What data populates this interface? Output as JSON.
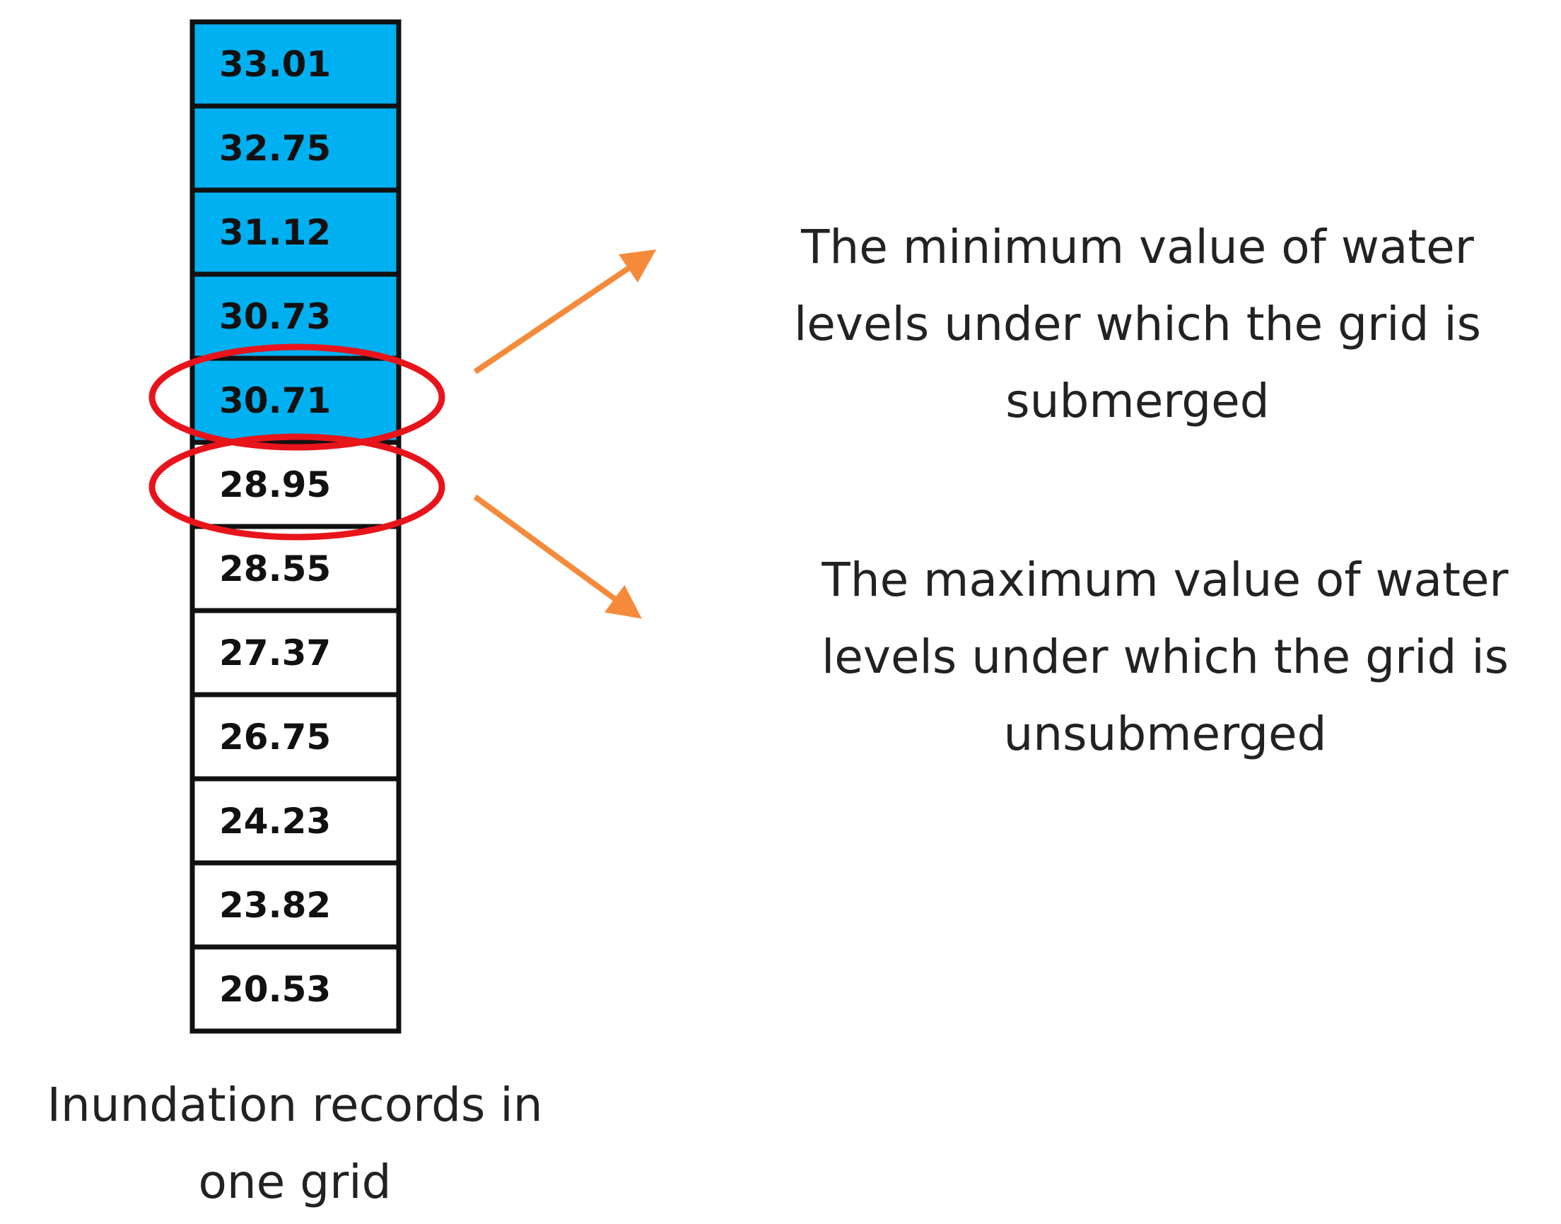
{
  "cells": [
    {
      "label": "33.01",
      "color": "#00b0f0"
    },
    {
      "label": "32.75",
      "color": "#00b0f0"
    },
    {
      "label": "31.12",
      "color": "#00b0f0"
    },
    {
      "label": "30.73",
      "color": "#00b0f0"
    },
    {
      "label": "30.71",
      "color": "#00b0f0"
    },
    {
      "label": "28.95",
      "color": "#ffffff"
    },
    {
      "label": "28.55",
      "color": "#ffffff"
    },
    {
      "label": "27.37",
      "color": "#ffffff"
    },
    {
      "label": "26.75",
      "color": "#ffffff"
    },
    {
      "label": "24.23",
      "color": "#ffffff"
    },
    {
      "label": "23.82",
      "color": "#ffffff"
    },
    {
      "label": "20.53",
      "color": "#ffffff"
    }
  ],
  "caption": [
    "Inundation records in",
    "one grid"
  ],
  "annotations": [
    [
      "The minimum value of water",
      "levels under which the grid is",
      "submerged"
    ],
    [
      "The maximum value of water",
      "levels under which the grid is",
      "unsubmerged"
    ]
  ]
}
